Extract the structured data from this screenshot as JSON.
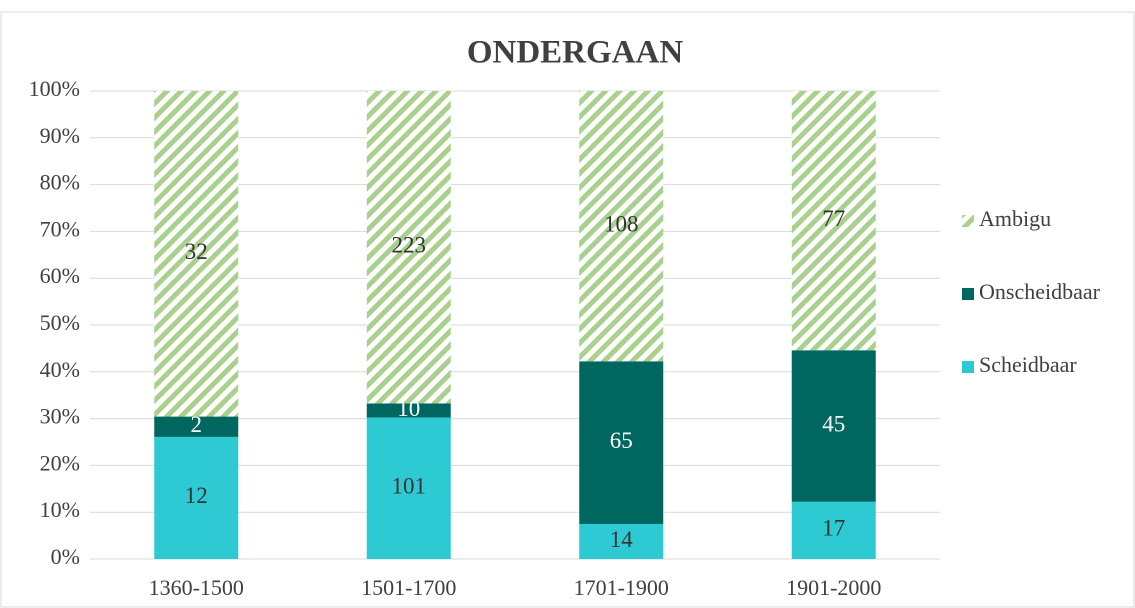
{
  "chart_data": {
    "type": "bar",
    "stacked": "percent",
    "title": "ONDERGAAN",
    "categories": [
      "1360-1500",
      "1501-1700",
      "1701-1900",
      "1901-2000"
    ],
    "series": [
      {
        "name": "Scheidbaar",
        "color": "#2ecad3",
        "label_color": "#333333",
        "values": [
          12,
          101,
          14,
          17
        ]
      },
      {
        "name": "Onscheidbaar",
        "color": "#006660",
        "label_color": "#ffffff",
        "values": [
          2,
          10,
          65,
          45
        ]
      },
      {
        "name": "Ambigu",
        "color": "#a9d18e",
        "pattern": "hatch",
        "label_color": "#333333",
        "values": [
          32,
          223,
          108,
          77
        ]
      }
    ],
    "ylim": [
      0,
      100
    ],
    "yticks": [
      {
        "value": 0,
        "label": "0%"
      },
      {
        "value": 10,
        "label": "10%"
      },
      {
        "value": 20,
        "label": "20%"
      },
      {
        "value": 30,
        "label": "30%"
      },
      {
        "value": 40,
        "label": "40%"
      },
      {
        "value": 50,
        "label": "50%"
      },
      {
        "value": 60,
        "label": "60%"
      },
      {
        "value": 70,
        "label": "70%"
      },
      {
        "value": 80,
        "label": "80%"
      },
      {
        "value": 90,
        "label": "90%"
      },
      {
        "value": 100,
        "label": "100%"
      }
    ],
    "grid": true,
    "legend": "right"
  }
}
